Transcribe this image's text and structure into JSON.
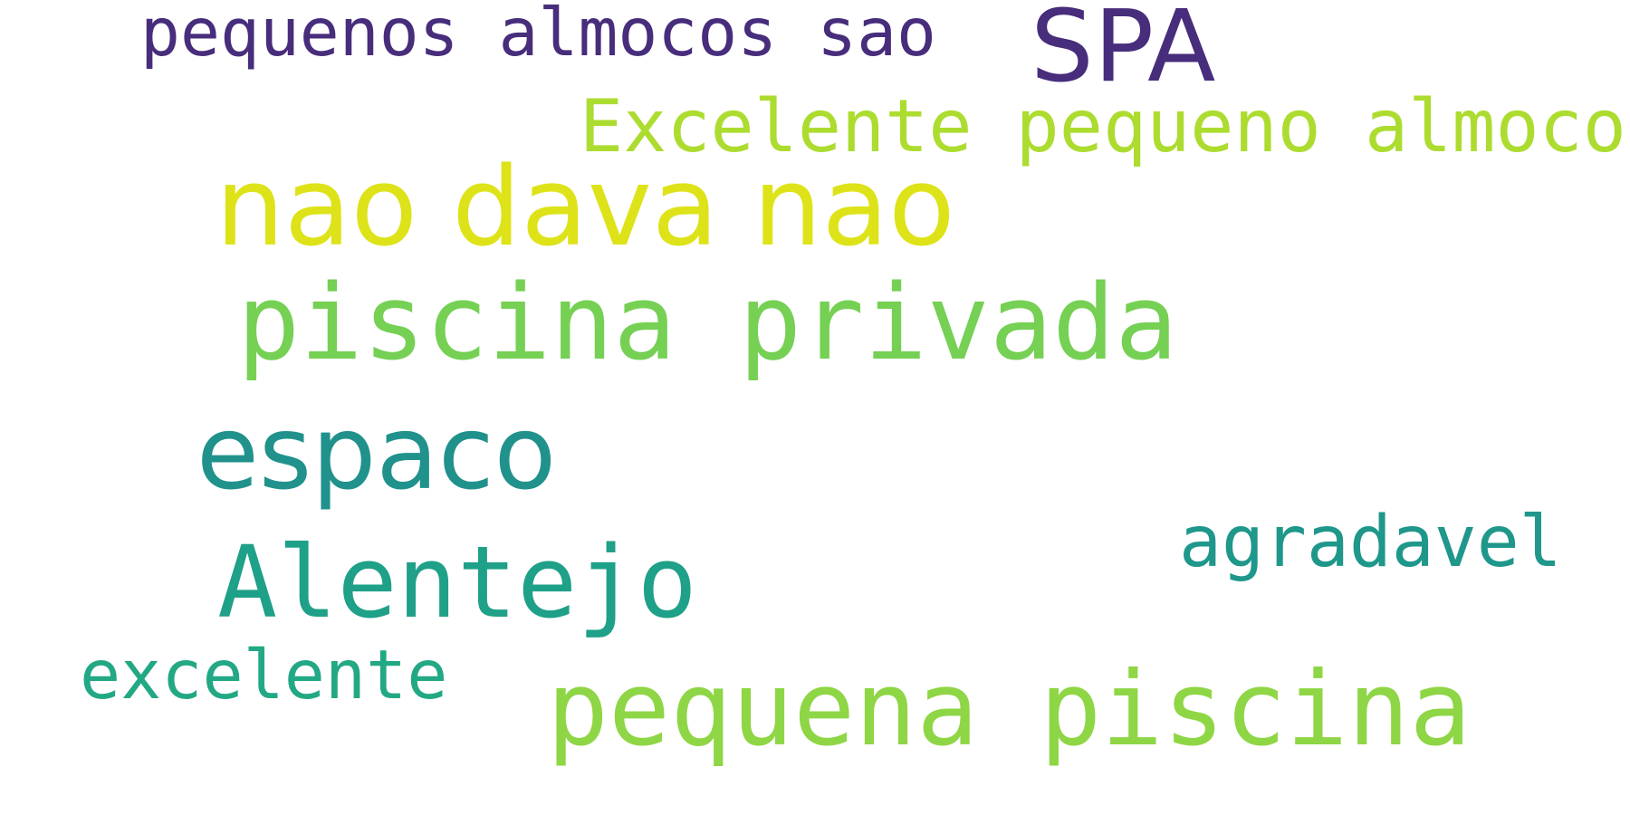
{
  "words": [
    {
      "text": "pequenos almocos sao",
      "color": "#472d7b"
    },
    {
      "text": "SPA",
      "color": "#472d7b"
    },
    {
      "text": "Excelente pequeno almoco",
      "color": "#addc30"
    },
    {
      "text": "nao dava nao",
      "color": "#dde318"
    },
    {
      "text": "piscina privada",
      "color": "#75d054"
    },
    {
      "text": "espaco",
      "color": "#21918c"
    },
    {
      "text": "agradavel",
      "color": "#1f978b"
    },
    {
      "text": "Alentejo",
      "color": "#1fa088"
    },
    {
      "text": "excelente",
      "color": "#22a884"
    },
    {
      "text": "pequena piscina",
      "color": "#8ed645"
    }
  ]
}
